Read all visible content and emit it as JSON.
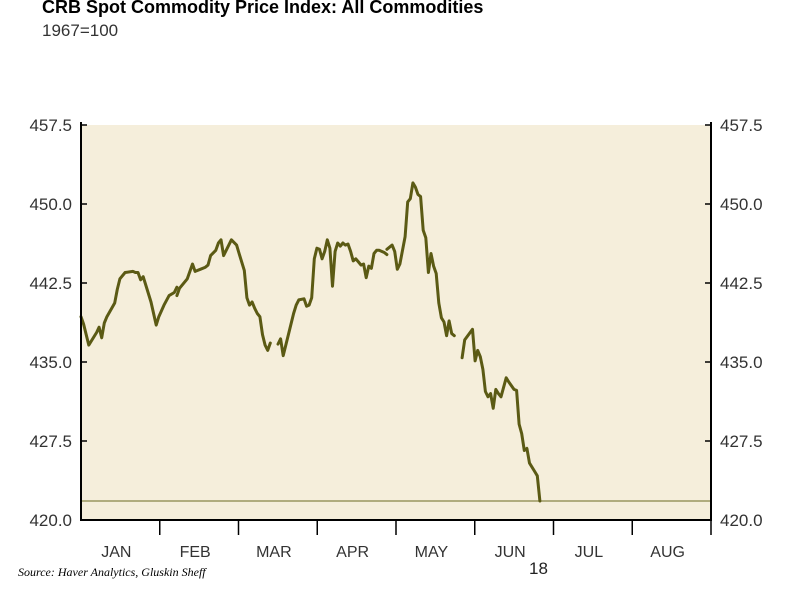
{
  "title": "CRB Spot Commodity Price Index: All Commodities",
  "subtitle": "1967=100",
  "source": "Source: Haver Analytics, Gluskin Sheff",
  "page_number": "18",
  "colors": {
    "plot_background": "#f5eedb",
    "series_line": "#5b5a14",
    "reference_line": "#6b6a20",
    "axis": "#000000"
  },
  "chart_data": {
    "type": "line",
    "title": "CRB Spot Commodity Price Index: All Commodities",
    "subtitle": "1967=100",
    "ylim": [
      420.0,
      457.5
    ],
    "yticks": [
      "420.0",
      "427.5",
      "435.0",
      "442.5",
      "450.0",
      "457.5"
    ],
    "ytick_values": [
      420.0,
      427.5,
      435.0,
      442.5,
      450.0,
      457.5
    ],
    "y_axis_both_sides": true,
    "grid": false,
    "x_months": [
      "JAN",
      "FEB",
      "MAR",
      "APR",
      "MAY",
      "JUN",
      "JUL",
      "AUG"
    ],
    "x_domain_days": [
      0,
      243
    ],
    "reference_line": 421.8,
    "series": [
      {
        "points": [
          [
            0,
            439.3
          ],
          [
            1,
            438.6
          ],
          [
            3,
            436.6
          ],
          [
            6,
            437.8
          ],
          [
            7,
            438.3
          ],
          [
            8,
            437.3
          ],
          [
            9,
            438.7
          ],
          [
            10,
            439.3
          ],
          [
            13,
            440.6
          ],
          [
            14,
            441.9
          ],
          [
            15,
            442.9
          ],
          [
            17,
            443.5
          ],
          [
            20,
            443.6
          ],
          [
            21,
            443.5
          ],
          [
            22,
            443.5
          ],
          [
            23,
            442.8
          ],
          [
            24,
            443.1
          ],
          [
            27,
            440.7
          ],
          [
            29,
            438.5
          ],
          [
            30,
            439.3
          ],
          [
            32,
            440.4
          ],
          [
            34,
            441.3
          ],
          [
            36,
            441.6
          ],
          [
            37,
            442.1
          ]
        ]
      },
      {
        "points": [
          [
            37,
            441.3
          ],
          [
            38,
            442.0
          ],
          [
            41,
            442.9
          ],
          [
            43,
            444.3
          ],
          [
            44,
            443.6
          ],
          [
            46,
            443.8
          ],
          [
            48,
            444.0
          ],
          [
            49,
            444.2
          ],
          [
            50,
            445.1
          ],
          [
            52,
            445.6
          ],
          [
            53,
            446.3
          ],
          [
            54,
            446.6
          ],
          [
            55,
            445.1
          ],
          [
            56,
            445.6
          ],
          [
            58,
            446.6
          ],
          [
            60,
            446.1
          ],
          [
            61,
            445.3
          ],
          [
            63,
            443.7
          ],
          [
            64,
            441.1
          ],
          [
            65,
            440.4
          ],
          [
            66,
            440.7
          ],
          [
            67,
            440.1
          ],
          [
            68,
            439.6
          ],
          [
            69,
            439.3
          ],
          [
            70,
            437.6
          ],
          [
            71,
            436.6
          ],
          [
            72,
            436.1
          ],
          [
            73,
            436.8
          ]
        ]
      },
      {
        "points": [
          [
            76,
            436.7
          ],
          [
            77,
            437.2
          ],
          [
            78,
            435.6
          ],
          [
            79,
            436.6
          ],
          [
            80,
            437.6
          ],
          [
            82,
            439.6
          ],
          [
            83,
            440.4
          ],
          [
            84,
            440.9
          ],
          [
            86,
            441.0
          ],
          [
            87,
            440.3
          ],
          [
            88,
            440.4
          ],
          [
            89,
            441.1
          ],
          [
            90,
            444.8
          ],
          [
            91,
            445.8
          ],
          [
            92,
            445.7
          ],
          [
            93,
            444.8
          ],
          [
            94,
            445.5
          ],
          [
            95,
            446.6
          ],
          [
            96,
            445.8
          ],
          [
            97,
            442.2
          ],
          [
            98,
            445.5
          ],
          [
            99,
            446.3
          ],
          [
            100,
            446.0
          ],
          [
            101,
            446.3
          ],
          [
            102,
            446.1
          ],
          [
            103,
            446.2
          ],
          [
            104,
            445.5
          ],
          [
            105,
            444.6
          ],
          [
            106,
            444.8
          ],
          [
            107,
            444.5
          ],
          [
            108,
            444.2
          ],
          [
            109,
            444.3
          ],
          [
            110,
            443.0
          ],
          [
            111,
            444.1
          ],
          [
            112,
            443.9
          ],
          [
            113,
            445.3
          ],
          [
            114,
            445.6
          ],
          [
            115,
            445.6
          ],
          [
            116,
            445.5
          ],
          [
            117,
            445.4
          ],
          [
            118,
            445.2
          ]
        ]
      },
      {
        "points": [
          [
            118,
            445.7
          ],
          [
            119,
            445.9
          ],
          [
            120,
            446.1
          ],
          [
            121,
            445.5
          ],
          [
            122,
            443.8
          ],
          [
            123,
            444.3
          ],
          [
            125,
            446.9
          ],
          [
            126,
            450.2
          ],
          [
            127,
            450.5
          ],
          [
            128,
            452.0
          ],
          [
            129,
            451.6
          ],
          [
            130,
            450.9
          ],
          [
            131,
            450.7
          ],
          [
            132,
            447.5
          ],
          [
            133,
            446.8
          ],
          [
            134,
            443.5
          ],
          [
            135,
            445.3
          ],
          [
            136,
            444.1
          ],
          [
            137,
            443.4
          ],
          [
            138,
            440.6
          ],
          [
            139,
            439.2
          ],
          [
            140,
            438.8
          ],
          [
            141,
            437.5
          ],
          [
            142,
            438.9
          ],
          [
            143,
            437.7
          ],
          [
            144,
            437.5
          ]
        ]
      },
      {
        "points": [
          [
            147,
            435.4
          ],
          [
            148,
            437.1
          ],
          [
            151,
            438.1
          ],
          [
            152,
            435.1
          ],
          [
            153,
            436.1
          ],
          [
            154,
            435.5
          ],
          [
            155,
            434.3
          ],
          [
            156,
            432.2
          ],
          [
            157,
            431.7
          ],
          [
            158,
            432.0
          ],
          [
            159,
            430.6
          ],
          [
            160,
            432.4
          ],
          [
            161,
            432.0
          ],
          [
            162,
            431.7
          ],
          [
            164,
            433.5
          ],
          [
            165,
            433.1
          ],
          [
            167,
            432.4
          ],
          [
            168,
            432.3
          ],
          [
            169,
            429.1
          ],
          [
            170,
            428.2
          ],
          [
            171,
            426.6
          ],
          [
            172,
            426.8
          ],
          [
            173,
            425.4
          ],
          [
            175,
            424.6
          ],
          [
            176,
            424.2
          ],
          [
            177,
            421.8
          ]
        ]
      }
    ]
  }
}
